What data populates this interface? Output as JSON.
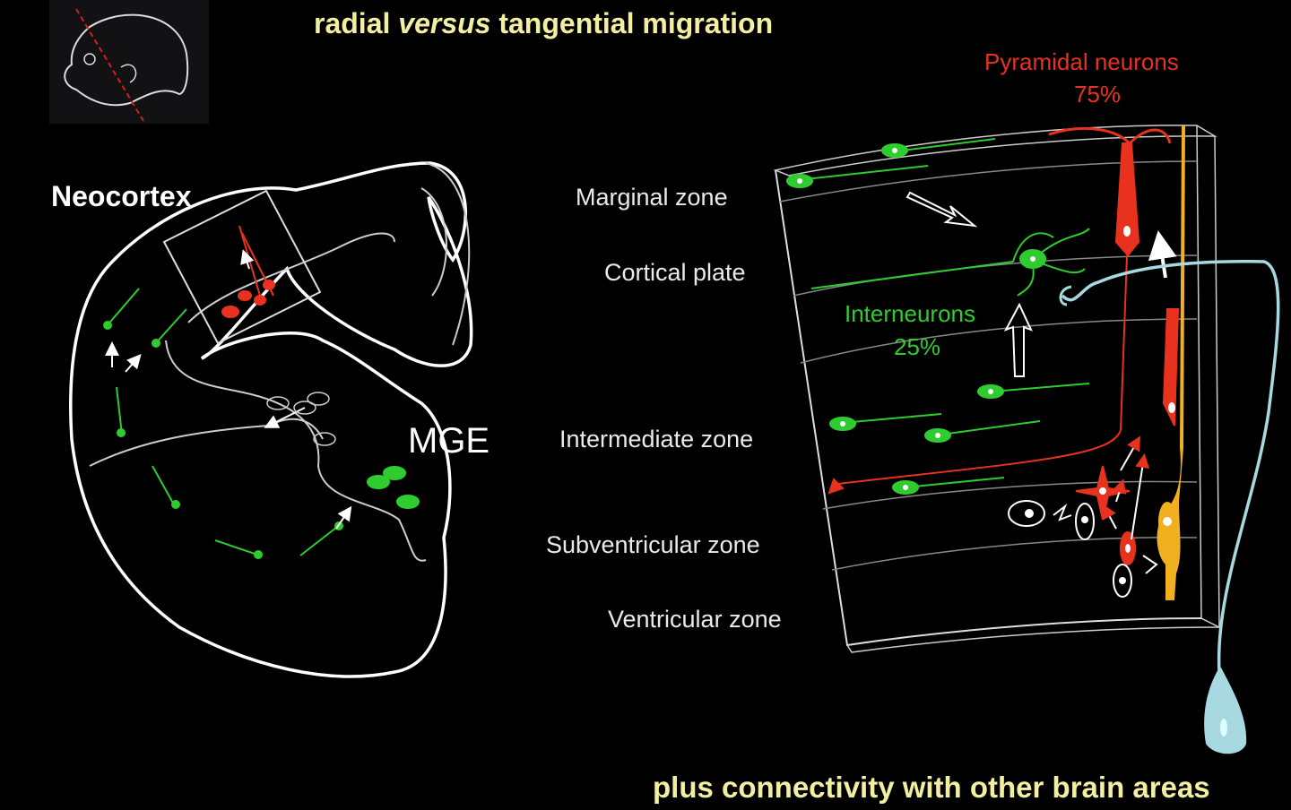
{
  "title": {
    "prefix": "radial ",
    "italic": "versus",
    "suffix": " tangential  migration"
  },
  "footer": "plus connectivity with other brain areas",
  "labels": {
    "neocortex": "Neocortex",
    "mge": "MGE",
    "pyramidal": "Pyramidal neurons",
    "pyramidal_pct": "75%",
    "interneurons": "Interneurons",
    "interneurons_pct": "25%"
  },
  "zones": [
    "Marginal zone",
    "Cortical plate",
    "Intermediate zone",
    "Subventricular zone",
    "Ventricular zone"
  ],
  "colors": {
    "title": "#f2f0a0",
    "pyramidal": "#e8321e",
    "interneuron": "#2ecc2e",
    "radial_glia": "#f0b020",
    "axon": "#a8d8e0",
    "outline": "#ffffff"
  }
}
